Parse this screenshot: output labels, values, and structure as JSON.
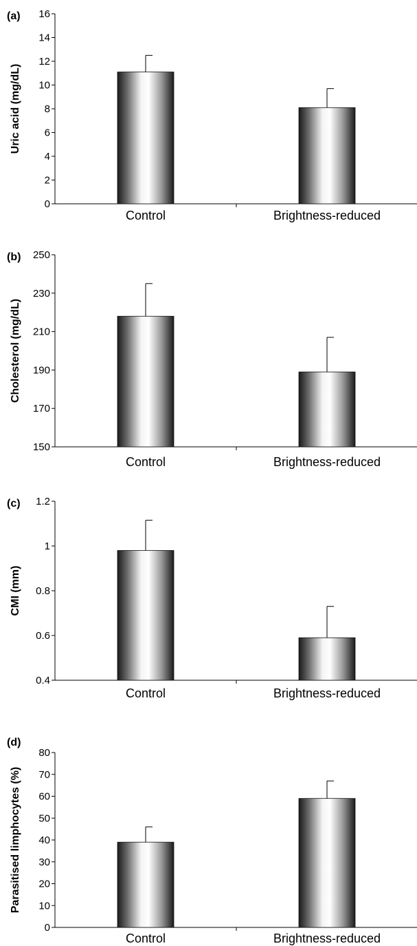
{
  "chart_data": [
    {
      "type": "bar",
      "panel_label": "(a)",
      "ylabel": "Uric acid (mg/dL)",
      "categories": [
        "Control",
        "Brightness-reduced"
      ],
      "values": [
        11.1,
        8.1
      ],
      "errors": [
        1.4,
        1.6
      ],
      "ylim": [
        0,
        16
      ],
      "yticks": [
        0,
        2,
        4,
        6,
        8,
        10,
        12,
        14,
        16
      ],
      "ytick_labels": [
        "0",
        "2",
        "4",
        "6",
        "8",
        "10",
        "12",
        "14",
        "16"
      ],
      "grid": false
    },
    {
      "type": "bar",
      "panel_label": "(b)",
      "ylabel": "Cholesterol (mg/dL)",
      "categories": [
        "Control",
        "Brightness-reduced"
      ],
      "values": [
        218,
        189
      ],
      "errors": [
        17,
        18
      ],
      "ylim": [
        150,
        250
      ],
      "yticks": [
        150,
        170,
        190,
        210,
        230,
        250
      ],
      "ytick_labels": [
        "150",
        "170",
        "190",
        "210",
        "230",
        "250"
      ],
      "grid": false
    },
    {
      "type": "bar",
      "panel_label": "(c)",
      "ylabel": "CMI (mm)",
      "categories": [
        "Control",
        "Brightness-reduced"
      ],
      "values": [
        0.98,
        0.59
      ],
      "errors": [
        0.135,
        0.14
      ],
      "ylim": [
        0.4,
        1.2
      ],
      "yticks": [
        0.4,
        0.6,
        0.8,
        1.0,
        1.2
      ],
      "ytick_labels": [
        "0.4",
        "0.6",
        "0.8",
        "1",
        "1.2"
      ],
      "grid": false
    },
    {
      "type": "bar",
      "panel_label": "(d)",
      "ylabel": "Parasitised limphocytes (%)",
      "categories": [
        "Control",
        "Brightness-reduced"
      ],
      "values": [
        39,
        59
      ],
      "errors": [
        7,
        8
      ],
      "ylim": [
        0,
        80
      ],
      "yticks": [
        0,
        10,
        20,
        30,
        40,
        50,
        60,
        70,
        80
      ],
      "ytick_labels": [
        "0",
        "10",
        "20",
        "30",
        "40",
        "50",
        "60",
        "70",
        "80"
      ],
      "grid": false
    }
  ]
}
